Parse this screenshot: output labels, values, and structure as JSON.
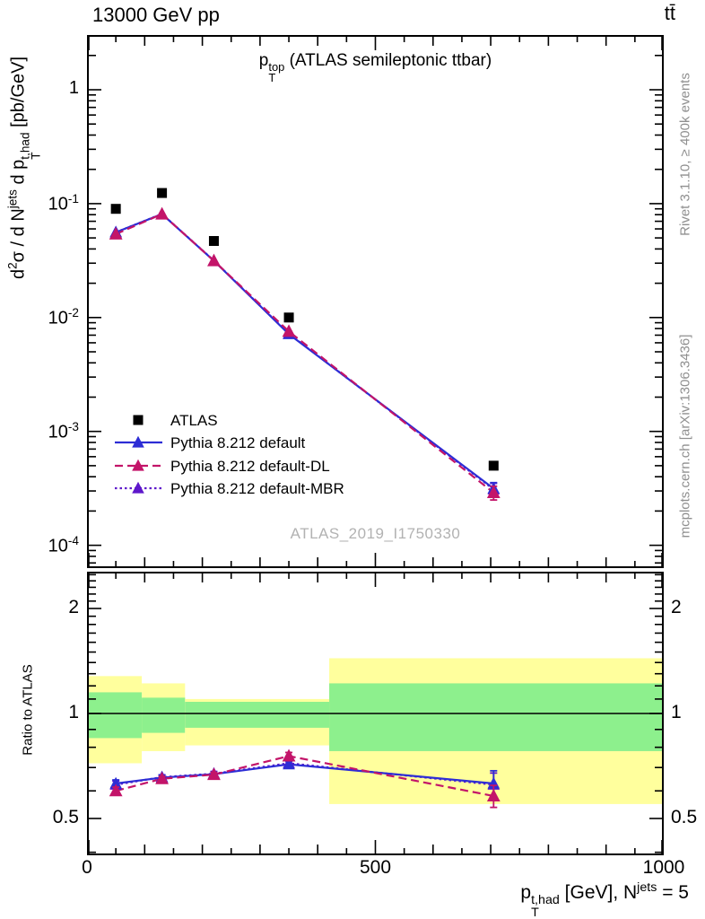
{
  "header": {
    "left_title": "13000 GeV pp",
    "right_title": "tt̄"
  },
  "side_notes": {
    "top_rotated": "Rivet 3.1.10, ≥ 400k events",
    "bottom_rotated": "mcplots.cern.ch [arXiv:1306.3436]"
  },
  "watermark": "ATLAS_2019_I1750330",
  "colors": {
    "atlas": "#000000",
    "pythia_default": "#2d2dd5",
    "pythia_dl": "#c31469",
    "pythia_mbr": "#5e17cb",
    "band_yellow": "#ffff9d",
    "band_green": "#8df08d",
    "gray_text": "#8f8f8f",
    "watermark_gray": "#b2b2b2",
    "frame": "#000000"
  },
  "main_panel": {
    "title_rich": "p_{T}^{top} (ATLAS semileptonic ttbar)",
    "ylabel_rich": "d^{2}σ / d N^{jets} d p_{T}^{t,had} [pb/GeV]",
    "ytick_labels": [
      "1",
      "10^{-1}",
      "10^{-2}",
      "10^{-3}",
      "10^{-4}"
    ],
    "ytick_values": [
      1,
      0.1,
      0.01,
      0.001,
      0.0001
    ]
  },
  "ratio_panel": {
    "ylabel": "Ratio to ATLAS",
    "ytick_labels": [
      "2",
      "1",
      "0.5"
    ],
    "ytick_values": [
      2,
      1,
      0.5
    ]
  },
  "x_axis": {
    "label_rich": "p_{T}^{t,had} [GeV], N^{jets} = 5",
    "tick_labels": [
      "0",
      "500",
      "1000"
    ],
    "tick_values": [
      0,
      500,
      1000
    ],
    "range": [
      0,
      1000
    ]
  },
  "legend": {
    "items": [
      {
        "label": "ATLAS",
        "marker": "square",
        "line": "none",
        "color_key": "atlas"
      },
      {
        "label": "Pythia 8.212 default",
        "marker": "triangle",
        "line": "solid",
        "color_key": "pythia_default"
      },
      {
        "label": "Pythia 8.212 default-DL",
        "marker": "triangle",
        "line": "dashed",
        "color_key": "pythia_dl"
      },
      {
        "label": "Pythia 8.212 default-MBR",
        "marker": "triangle",
        "line": "dotted",
        "color_key": "pythia_mbr"
      }
    ]
  },
  "chart_data": [
    {
      "type": "line",
      "panel": "main",
      "title": "pT^top (ATLAS semileptonic ttbar)",
      "xlabel": "pT^{t,had} [GeV], N^jets = 5",
      "ylabel": "d2sigma / d N^jets d pT^{t,had} [pb/GeV]",
      "x_range": [
        0,
        1000
      ],
      "y_range_log": [
        6.3e-05,
        3.0
      ],
      "grid": false,
      "legend_position": "center-left",
      "x": [
        50,
        130,
        220,
        350,
        705
      ],
      "series": [
        {
          "name": "ATLAS",
          "marker": "square",
          "line": "none",
          "color_key": "atlas",
          "values": [
            0.09,
            0.124,
            0.047,
            0.01,
            0.0005
          ]
        },
        {
          "name": "Pythia 8.212 default",
          "marker": "triangle",
          "line": "solid",
          "color_key": "pythia_default",
          "values": [
            0.056,
            0.081,
            0.0315,
            0.00715,
            0.000315
          ],
          "yerr": [
            0,
            0,
            0,
            0,
            4e-05
          ]
        },
        {
          "name": "Pythia 8.212 default-DL",
          "marker": "triangle",
          "line": "dashed",
          "color_key": "pythia_dl",
          "values": [
            0.054,
            0.081,
            0.0315,
            0.00755,
            0.00029
          ],
          "yerr": [
            0,
            0,
            0,
            0,
            4e-05
          ]
        },
        {
          "name": "Pythia 8.212 default-MBR",
          "marker": "triangle",
          "line": "dotted",
          "color_key": "pythia_mbr",
          "values": [
            0.056,
            0.0812,
            0.0316,
            0.0072,
            0.00031
          ],
          "yerr": [
            0,
            0,
            0,
            0,
            4e-05
          ]
        }
      ]
    },
    {
      "type": "ratio",
      "panel": "ratio",
      "ylabel": "Ratio to ATLAS",
      "y_range_log": [
        0.39,
        2.55
      ],
      "reference_line": 1,
      "x": [
        50,
        130,
        220,
        350,
        705
      ],
      "bands": [
        {
          "x0": 0,
          "x1": 95,
          "yellow": [
            0.72,
            1.28
          ],
          "green": [
            0.85,
            1.15
          ]
        },
        {
          "x0": 95,
          "x1": 170,
          "yellow": [
            0.78,
            1.22
          ],
          "green": [
            0.88,
            1.11
          ]
        },
        {
          "x0": 170,
          "x1": 420,
          "yellow": [
            0.81,
            1.1
          ],
          "green": [
            0.91,
            1.08
          ]
        },
        {
          "x0": 420,
          "x1": 1000,
          "yellow": [
            0.55,
            1.44
          ],
          "green": [
            0.78,
            1.22
          ]
        }
      ],
      "series": [
        {
          "name": "Pythia 8.212 default",
          "marker": "triangle",
          "line": "solid",
          "color_key": "pythia_default",
          "values": [
            0.63,
            0.655,
            0.67,
            0.715,
            0.63
          ],
          "yerr": [
            0.015,
            0.01,
            0.01,
            0.013,
            0.055
          ]
        },
        {
          "name": "Pythia 8.212 default-DL",
          "marker": "triangle",
          "line": "dashed",
          "color_key": "pythia_dl",
          "values": [
            0.6,
            0.65,
            0.668,
            0.755,
            0.58
          ],
          "yerr": [
            0.015,
            0.01,
            0.01,
            0.018,
            0.042
          ]
        },
        {
          "name": "Pythia 8.212 default-MBR",
          "marker": "triangle",
          "line": "dotted",
          "color_key": "pythia_mbr",
          "values": [
            0.625,
            0.657,
            0.672,
            0.72,
            0.625
          ],
          "yerr": [
            0.015,
            0.01,
            0.01,
            0.013,
            0.05
          ]
        }
      ]
    }
  ]
}
